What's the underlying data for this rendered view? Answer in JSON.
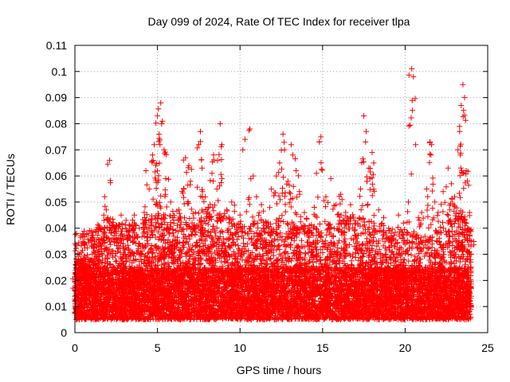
{
  "chart_data": {
    "type": "scatter",
    "title": "Day 099 of 2024, Rate Of TEC Index for receiver tlpa",
    "xlabel": "GPS time / hours",
    "ylabel": "ROTI / TECUs",
    "xlim": [
      0,
      25
    ],
    "ylim": [
      0,
      0.11
    ],
    "x_ticks": [
      "0",
      "5",
      "10",
      "15",
      "20",
      "25"
    ],
    "y_ticks": [
      "0",
      "0.01",
      "0.02",
      "0.03",
      "0.04",
      "0.05",
      "0.06",
      "0.07",
      "0.08",
      "0.09",
      "0.1",
      "0.11"
    ],
    "grid": true,
    "marker": "+",
    "series_color": "#ff0000",
    "series": [
      {
        "points": [
          [
            0.0,
            0.012
          ],
          [
            0.1,
            0.022
          ],
          [
            0.2,
            0.028
          ],
          [
            0.3,
            0.018
          ],
          [
            0.4,
            0.01
          ],
          [
            0.6,
            0.016
          ],
          [
            0.8,
            0.021
          ],
          [
            1.0,
            0.027
          ],
          [
            1.2,
            0.034
          ],
          [
            1.3,
            0.029
          ],
          [
            1.5,
            0.04
          ],
          [
            1.6,
            0.036
          ],
          [
            1.8,
            0.052
          ],
          [
            1.9,
            0.047
          ],
          [
            2.0,
            0.044
          ],
          [
            2.1,
            0.066
          ],
          [
            2.3,
            0.041
          ],
          [
            2.5,
            0.038
          ],
          [
            2.8,
            0.045
          ],
          [
            3.1,
            0.043
          ],
          [
            3.3,
            0.037
          ],
          [
            3.6,
            0.045
          ],
          [
            3.9,
            0.04
          ],
          [
            4.2,
            0.046
          ],
          [
            4.3,
            0.062
          ],
          [
            4.5,
            0.055
          ],
          [
            4.7,
            0.068
          ],
          [
            4.8,
            0.072
          ],
          [
            4.9,
            0.064
          ],
          [
            5.0,
            0.083
          ],
          [
            5.1,
            0.076
          ],
          [
            5.2,
            0.088
          ],
          [
            5.3,
            0.081
          ],
          [
            5.4,
            0.07
          ],
          [
            5.5,
            0.059
          ],
          [
            5.8,
            0.05
          ],
          [
            6.0,
            0.044
          ],
          [
            6.3,
            0.047
          ],
          [
            6.6,
            0.055
          ],
          [
            6.7,
            0.067
          ],
          [
            6.9,
            0.064
          ],
          [
            7.0,
            0.058
          ],
          [
            7.3,
            0.046
          ],
          [
            7.5,
            0.072
          ],
          [
            7.6,
            0.077
          ],
          [
            7.7,
            0.063
          ],
          [
            7.9,
            0.052
          ],
          [
            8.1,
            0.048
          ],
          [
            8.3,
            0.061
          ],
          [
            8.4,
            0.068
          ],
          [
            8.6,
            0.055
          ],
          [
            8.8,
            0.08
          ],
          [
            8.9,
            0.072
          ],
          [
            9.2,
            0.047
          ],
          [
            9.5,
            0.05
          ],
          [
            9.8,
            0.04
          ],
          [
            10.0,
            0.045
          ],
          [
            10.3,
            0.074
          ],
          [
            10.6,
            0.078
          ],
          [
            10.8,
            0.06
          ],
          [
            11.0,
            0.052
          ],
          [
            11.3,
            0.049
          ],
          [
            11.6,
            0.042
          ],
          [
            11.9,
            0.055
          ],
          [
            12.2,
            0.06
          ],
          [
            12.4,
            0.065
          ],
          [
            12.6,
            0.076
          ],
          [
            12.7,
            0.07
          ],
          [
            12.9,
            0.058
          ],
          [
            13.1,
            0.072
          ],
          [
            13.2,
            0.068
          ],
          [
            13.4,
            0.062
          ],
          [
            13.6,
            0.054
          ],
          [
            13.9,
            0.046
          ],
          [
            14.2,
            0.041
          ],
          [
            14.5,
            0.048
          ],
          [
            14.8,
            0.073
          ],
          [
            14.9,
            0.075
          ],
          [
            15.2,
            0.052
          ],
          [
            15.5,
            0.059
          ],
          [
            15.8,
            0.049
          ],
          [
            16.1,
            0.053
          ],
          [
            16.4,
            0.046
          ],
          [
            16.7,
            0.049
          ],
          [
            17.0,
            0.042
          ],
          [
            17.3,
            0.055
          ],
          [
            17.5,
            0.083
          ],
          [
            17.6,
            0.073
          ],
          [
            17.8,
            0.063
          ],
          [
            18.0,
            0.069
          ],
          [
            18.1,
            0.065
          ],
          [
            18.4,
            0.047
          ],
          [
            18.7,
            0.044
          ],
          [
            19.0,
            0.04
          ],
          [
            19.3,
            0.036
          ],
          [
            19.6,
            0.045
          ],
          [
            19.9,
            0.042
          ],
          [
            20.2,
            0.05
          ],
          [
            20.4,
            0.101
          ],
          [
            20.5,
            0.098
          ],
          [
            20.8,
            0.044
          ],
          [
            21.0,
            0.046
          ],
          [
            21.3,
            0.055
          ],
          [
            21.5,
            0.073
          ],
          [
            21.6,
            0.072
          ],
          [
            21.8,
            0.05
          ],
          [
            22.0,
            0.046
          ],
          [
            22.3,
            0.054
          ],
          [
            22.6,
            0.063
          ],
          [
            22.8,
            0.057
          ],
          [
            23.0,
            0.052
          ],
          [
            23.2,
            0.07
          ],
          [
            23.3,
            0.079
          ],
          [
            23.4,
            0.087
          ],
          [
            23.5,
            0.095
          ],
          [
            23.6,
            0.09
          ],
          [
            23.7,
            0.062
          ],
          [
            23.9,
            0.046
          ],
          [
            24.0,
            0.035
          ]
        ],
        "dense_band": {
          "x_range": [
            0,
            24
          ],
          "core_y_range": [
            0.005,
            0.025
          ],
          "upper_envelope": [
            [
              0,
              0.026
            ],
            [
              1,
              0.028
            ],
            [
              2,
              0.032
            ],
            [
              3,
              0.031
            ],
            [
              4,
              0.03
            ],
            [
              5,
              0.034
            ],
            [
              6,
              0.033
            ],
            [
              7,
              0.032
            ],
            [
              8,
              0.033
            ],
            [
              9,
              0.034
            ],
            [
              10,
              0.03
            ],
            [
              11,
              0.03
            ],
            [
              12,
              0.031
            ],
            [
              13,
              0.031
            ],
            [
              14,
              0.03
            ],
            [
              15,
              0.028
            ],
            [
              16,
              0.034
            ],
            [
              17,
              0.033
            ],
            [
              18,
              0.031
            ],
            [
              19,
              0.028
            ],
            [
              20,
              0.027
            ],
            [
              21,
              0.025
            ],
            [
              22,
              0.028
            ],
            [
              23,
              0.038
            ],
            [
              24,
              0.03
            ]
          ]
        }
      }
    ]
  }
}
